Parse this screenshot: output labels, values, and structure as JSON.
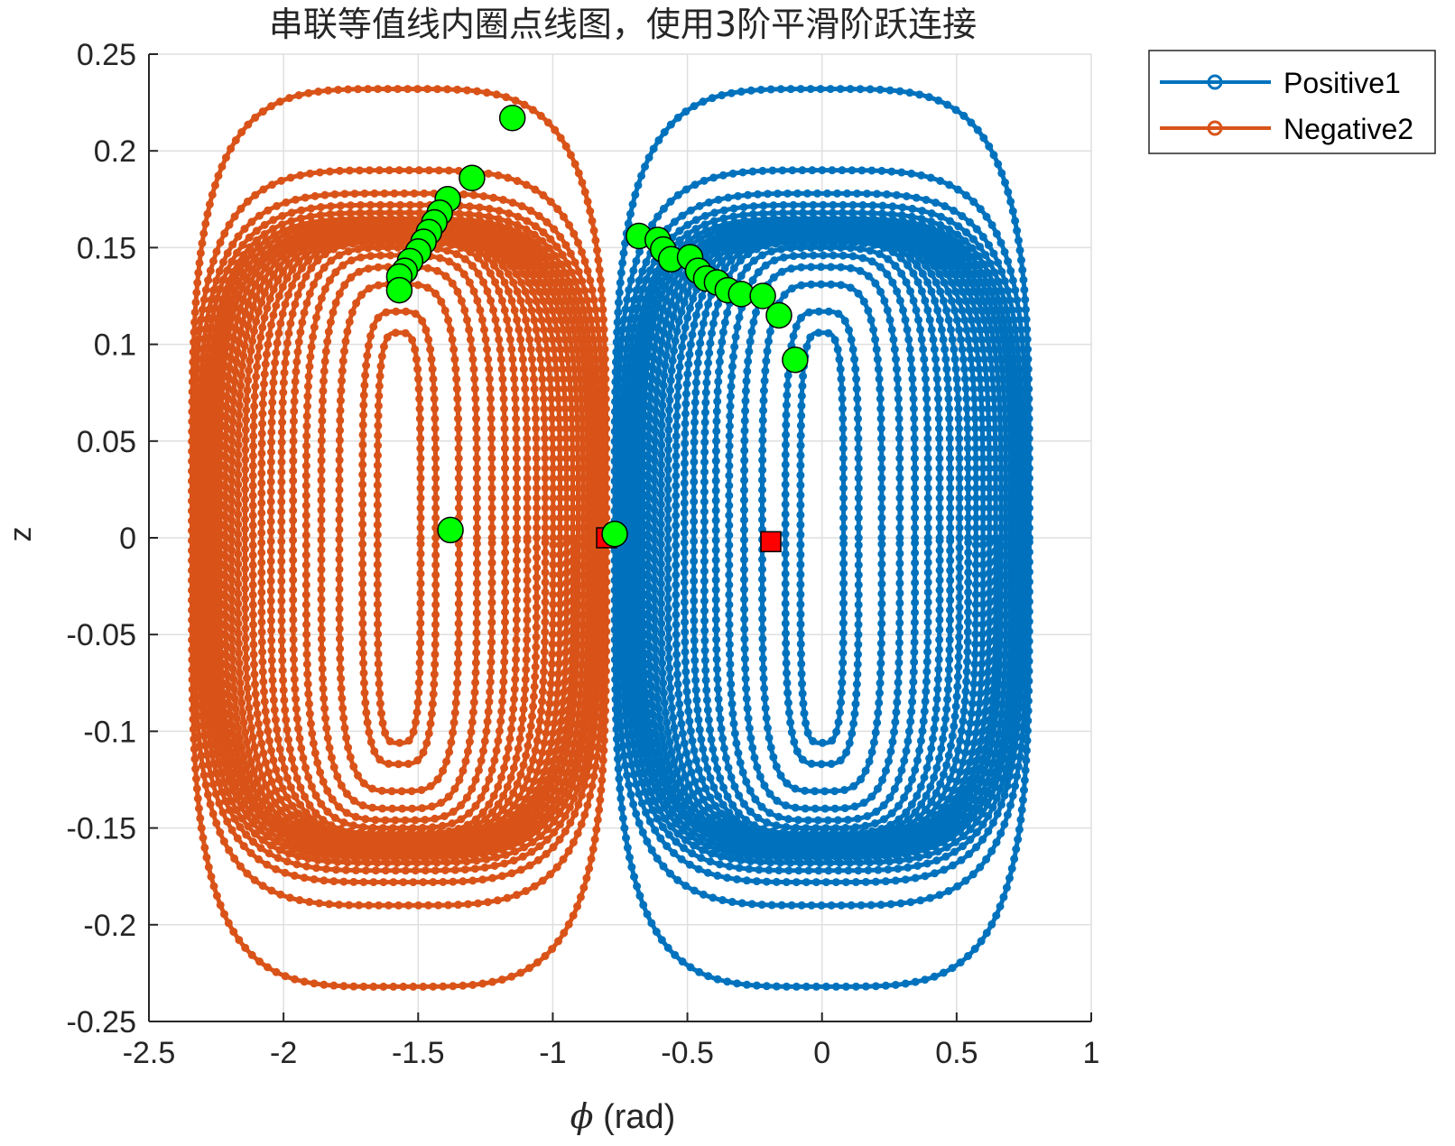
{
  "chart_data": {
    "type": "scatter",
    "title": "串联等值线内圈点线图，使用3阶平滑阶跃连接",
    "xlabel_symbol": "ϕ",
    "xlabel_unit": "(rad)",
    "ylabel": "z",
    "xlim": [
      -2.5,
      1
    ],
    "ylim": [
      -0.25,
      0.25
    ],
    "xticks": [
      -2.5,
      -2,
      -1.5,
      -1,
      -0.5,
      0,
      0.5,
      1
    ],
    "yticks": [
      -0.25,
      -0.2,
      -0.15,
      -0.1,
      -0.05,
      0,
      0.05,
      0.1,
      0.15,
      0.2,
      0.25
    ],
    "xtick_labels": [
      "-2.5",
      "-2",
      "-1.5",
      "-1",
      "-0.5",
      "0",
      "0.5",
      "1"
    ],
    "ytick_labels": [
      "-0.25",
      "-0.2",
      "-0.15",
      "-0.1",
      "-0.05",
      "0",
      "0.05",
      "0.1",
      "0.15",
      "0.2",
      "0.25"
    ],
    "grid": true,
    "legend_position": "outside-top-right",
    "series": [
      {
        "name": "Positive1",
        "color": "#0072BD",
        "center_x": 0,
        "contours": [
          {
            "half_width": 0.77,
            "half_height": 0.232
          },
          {
            "half_width": 0.76,
            "half_height": 0.19
          },
          {
            "half_width": 0.745,
            "half_height": 0.178
          },
          {
            "half_width": 0.73,
            "half_height": 0.172
          },
          {
            "half_width": 0.715,
            "half_height": 0.168
          },
          {
            "half_width": 0.7,
            "half_height": 0.165
          },
          {
            "half_width": 0.683,
            "half_height": 0.163
          },
          {
            "half_width": 0.665,
            "half_height": 0.161
          },
          {
            "half_width": 0.645,
            "half_height": 0.16
          },
          {
            "half_width": 0.622,
            "half_height": 0.159
          },
          {
            "half_width": 0.598,
            "half_height": 0.158
          },
          {
            "half_width": 0.572,
            "half_height": 0.157
          },
          {
            "half_width": 0.543,
            "half_height": 0.156
          },
          {
            "half_width": 0.511,
            "half_height": 0.155
          },
          {
            "half_width": 0.476,
            "half_height": 0.154
          },
          {
            "half_width": 0.437,
            "half_height": 0.153
          },
          {
            "half_width": 0.394,
            "half_height": 0.15
          },
          {
            "half_width": 0.345,
            "half_height": 0.146
          },
          {
            "half_width": 0.289,
            "half_height": 0.14
          },
          {
            "half_width": 0.222,
            "half_height": 0.131
          },
          {
            "half_width": 0.136,
            "half_height": 0.117
          },
          {
            "half_width": 0.08,
            "half_height": 0.106
          }
        ]
      },
      {
        "name": "Negative2",
        "color": "#D95319",
        "center_x": -1.5708,
        "contours": [
          {
            "half_width": 0.77,
            "half_height": 0.232
          },
          {
            "half_width": 0.76,
            "half_height": 0.19
          },
          {
            "half_width": 0.745,
            "half_height": 0.178
          },
          {
            "half_width": 0.73,
            "half_height": 0.172
          },
          {
            "half_width": 0.715,
            "half_height": 0.168
          },
          {
            "half_width": 0.7,
            "half_height": 0.165
          },
          {
            "half_width": 0.683,
            "half_height": 0.163
          },
          {
            "half_width": 0.665,
            "half_height": 0.161
          },
          {
            "half_width": 0.645,
            "half_height": 0.16
          },
          {
            "half_width": 0.622,
            "half_height": 0.159
          },
          {
            "half_width": 0.598,
            "half_height": 0.158
          },
          {
            "half_width": 0.572,
            "half_height": 0.157
          },
          {
            "half_width": 0.543,
            "half_height": 0.156
          },
          {
            "half_width": 0.511,
            "half_height": 0.155
          },
          {
            "half_width": 0.476,
            "half_height": 0.154
          },
          {
            "half_width": 0.437,
            "half_height": 0.153
          },
          {
            "half_width": 0.394,
            "half_height": 0.15
          },
          {
            "half_width": 0.345,
            "half_height": 0.146
          },
          {
            "half_width": 0.289,
            "half_height": 0.14
          },
          {
            "half_width": 0.222,
            "half_height": 0.131
          },
          {
            "half_width": 0.136,
            "half_height": 0.117
          },
          {
            "half_width": 0.08,
            "half_height": 0.106
          }
        ]
      }
    ],
    "green_markers": {
      "color": "#00FF00",
      "points": [
        [
          -1.15,
          0.217
        ],
        [
          -1.3,
          0.186
        ],
        [
          -1.39,
          0.175
        ],
        [
          -1.42,
          0.168
        ],
        [
          -1.44,
          0.163
        ],
        [
          -1.46,
          0.158
        ],
        [
          -1.48,
          0.153
        ],
        [
          -1.5,
          0.148
        ],
        [
          -1.53,
          0.143
        ],
        [
          -1.55,
          0.138
        ],
        [
          -1.57,
          0.135
        ],
        [
          -1.57,
          0.128
        ],
        [
          -1.38,
          0.004
        ],
        [
          -0.77,
          0.002
        ],
        [
          -0.68,
          0.156
        ],
        [
          -0.61,
          0.154
        ],
        [
          -0.59,
          0.149
        ],
        [
          -0.56,
          0.144
        ],
        [
          -0.49,
          0.145
        ],
        [
          -0.46,
          0.138
        ],
        [
          -0.43,
          0.134
        ],
        [
          -0.39,
          0.132
        ],
        [
          -0.35,
          0.128
        ],
        [
          -0.3,
          0.126
        ],
        [
          -0.22,
          0.125
        ],
        [
          -0.16,
          0.115
        ],
        [
          -0.1,
          0.092
        ]
      ]
    },
    "red_markers": {
      "color": "#FF0000",
      "points": [
        [
          -0.8,
          0.0
        ],
        [
          -0.19,
          -0.002
        ]
      ]
    }
  }
}
